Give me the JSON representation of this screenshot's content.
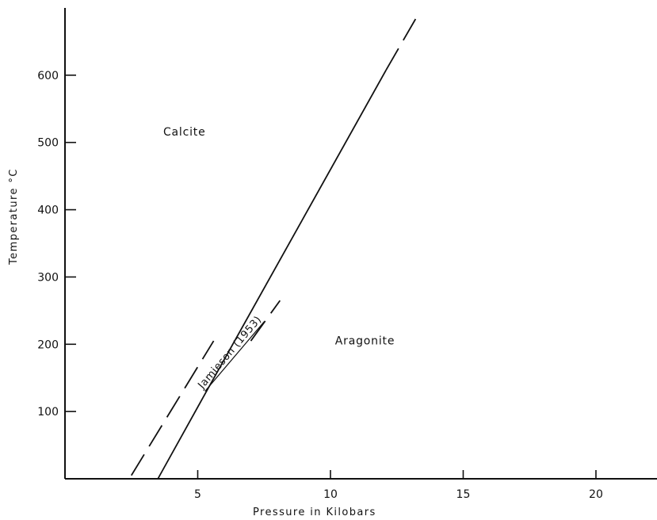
{
  "chart_data": {
    "type": "line",
    "xlabel": "Pressure in Kilobars",
    "ylabel": "Temperature  °C",
    "xlim": [
      0,
      22.3
    ],
    "ylim": [
      0,
      700
    ],
    "x_ticks": [
      5,
      10,
      15,
      20
    ],
    "y_ticks": [
      100,
      200,
      300,
      400,
      500,
      600
    ],
    "grid": false,
    "series": [
      {
        "points": [
          [
            3.5,
            0
          ],
          [
            13.3,
            690
          ]
        ],
        "segments": [
          {
            "from": [
              3.5,
              0
            ],
            "to": [
              5.4,
              135
            ],
            "style": "solid"
          },
          {
            "from": [
              5.4,
              135
            ],
            "to": [
              12.1,
              608
            ],
            "style": "solid"
          },
          {
            "from": [
              12.1,
              608
            ],
            "to": [
              13.3,
              690
            ],
            "style": "dashed"
          }
        ]
      },
      {
        "points": [
          [
            2.5,
            5
          ],
          [
            8.1,
            265
          ]
        ],
        "segments": [
          {
            "from": [
              2.5,
              5
            ],
            "to": [
              5.6,
              205
            ],
            "style": "dashed"
          },
          {
            "from": [
              7.0,
              205
            ],
            "to": [
              8.1,
              265
            ],
            "style": "dashed"
          }
        ]
      }
    ],
    "annotations": [
      {
        "text": "Calcite",
        "x": 4.5,
        "y": 510
      },
      {
        "text": "Aragonite",
        "x": 11.3,
        "y": 200
      },
      {
        "text": "Jamieson (1953)",
        "x": 6.3,
        "y": 185,
        "underlined": true
      }
    ]
  }
}
